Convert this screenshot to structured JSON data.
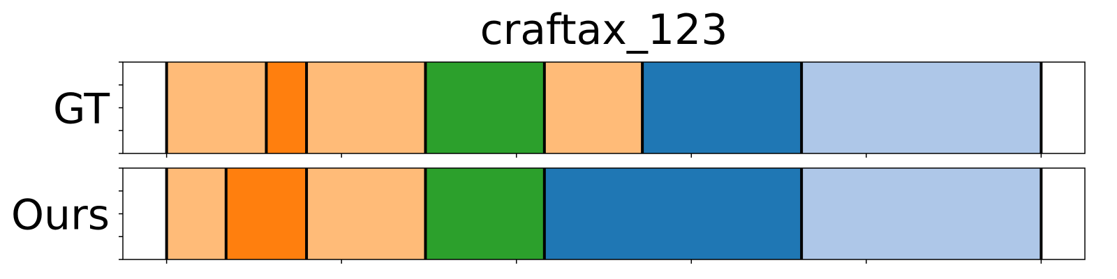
{
  "chart_data": {
    "type": "bar",
    "title": "craftax_123",
    "xlim": [
      0,
      550
    ],
    "grid": false,
    "legend": "none",
    "rows": [
      {
        "label": "GT",
        "segments": [
          {
            "start": 25,
            "end": 82,
            "color": "#ffbb78"
          },
          {
            "start": 82,
            "end": 105,
            "color": "#ff7f0e"
          },
          {
            "start": 105,
            "end": 173,
            "color": "#ffbb78"
          },
          {
            "start": 173,
            "end": 241,
            "color": "#2ca02c"
          },
          {
            "start": 241,
            "end": 297,
            "color": "#ffbb78"
          },
          {
            "start": 297,
            "end": 388,
            "color": "#1f77b4"
          },
          {
            "start": 388,
            "end": 525,
            "color": "#aec7e8"
          }
        ]
      },
      {
        "label": "Ours",
        "segments": [
          {
            "start": 25,
            "end": 59,
            "color": "#ffbb78"
          },
          {
            "start": 59,
            "end": 105,
            "color": "#ff7f0e"
          },
          {
            "start": 105,
            "end": 173,
            "color": "#ffbb78"
          },
          {
            "start": 173,
            "end": 241,
            "color": "#2ca02c"
          },
          {
            "start": 241,
            "end": 388,
            "color": "#1f77b4"
          },
          {
            "start": 388,
            "end": 525,
            "color": "#aec7e8"
          }
        ]
      }
    ],
    "x_ticks": [
      25,
      125,
      225,
      325,
      425,
      525
    ],
    "tick_labels_shown": false
  }
}
